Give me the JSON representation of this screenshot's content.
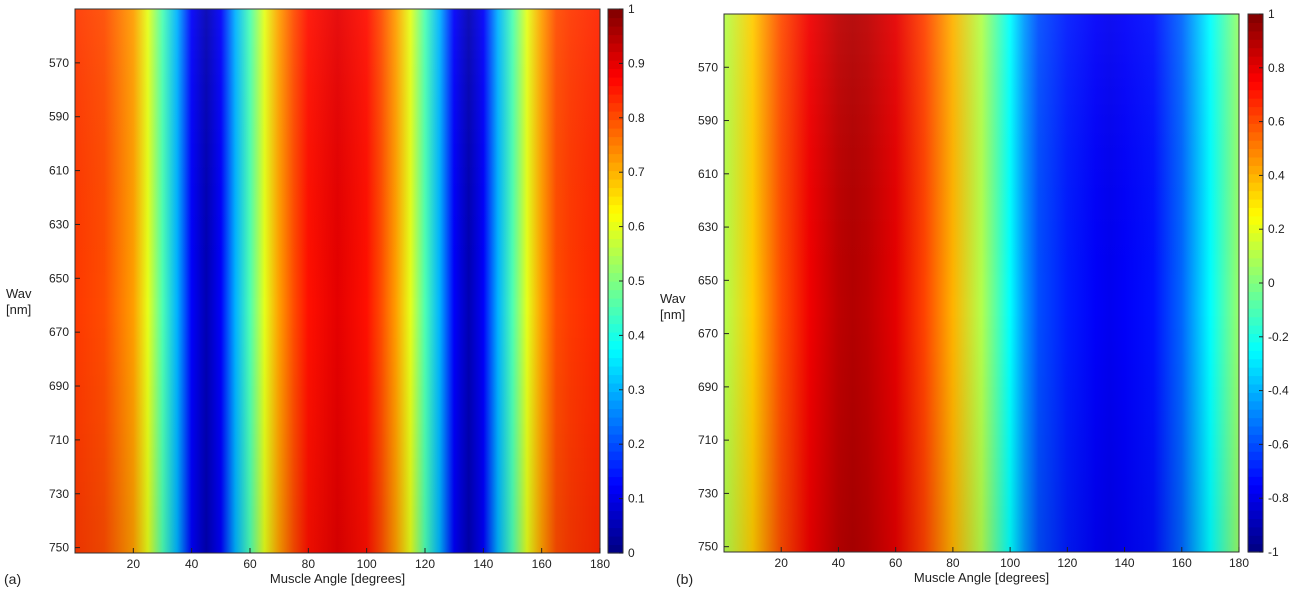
{
  "chart_data": [
    {
      "panel_label": "(a)",
      "type": "heatmap",
      "xlabel": "Muscle Angle [degrees]",
      "ylabel_lines": [
        "Wav",
        "[nm]"
      ],
      "xlim": [
        0,
        180
      ],
      "ylim": [
        550,
        752
      ],
      "x_ticks": [
        20,
        40,
        60,
        80,
        100,
        120,
        140,
        160,
        180
      ],
      "y_ticks": [
        570,
        590,
        610,
        630,
        650,
        670,
        690,
        710,
        730,
        750
      ],
      "colorbar": {
        "range": [
          0,
          1
        ],
        "ticks": [
          0,
          0.1,
          0.2,
          0.3,
          0.4,
          0.5,
          0.6,
          0.7,
          0.8,
          0.9,
          1
        ],
        "tick_labels": [
          "0",
          "0.1",
          "0.2",
          "0.3",
          "0.4",
          "0.5",
          "0.6",
          "0.7",
          "0.8",
          "0.9",
          "1"
        ]
      },
      "colormap": "jet",
      "profile": {
        "angle": [
          0,
          10,
          20,
          25,
          30,
          35,
          40,
          45,
          50,
          55,
          60,
          65,
          70,
          75,
          80,
          90,
          100,
          105,
          110,
          115,
          120,
          125,
          130,
          135,
          140,
          145,
          150,
          155,
          160,
          165,
          170,
          180
        ],
        "value": [
          0.82,
          0.8,
          0.72,
          0.6,
          0.45,
          0.3,
          0.12,
          0.05,
          0.12,
          0.3,
          0.45,
          0.6,
          0.72,
          0.8,
          0.86,
          0.9,
          0.86,
          0.8,
          0.72,
          0.6,
          0.45,
          0.3,
          0.12,
          0.05,
          0.12,
          0.3,
          0.45,
          0.6,
          0.72,
          0.8,
          0.82,
          0.84
        ]
      }
    },
    {
      "panel_label": "(b)",
      "type": "heatmap",
      "xlabel": "Muscle Angle [degrees]",
      "ylabel_lines": [
        "Wav",
        "[nm]"
      ],
      "xlim": [
        0,
        180
      ],
      "ylim": [
        550,
        752
      ],
      "x_ticks": [
        20,
        40,
        60,
        80,
        100,
        120,
        140,
        160,
        180
      ],
      "y_ticks": [
        570,
        590,
        610,
        630,
        650,
        670,
        690,
        710,
        730,
        750
      ],
      "colorbar": {
        "range": [
          -1,
          1
        ],
        "ticks": [
          -1,
          -0.8,
          -0.6,
          -0.4,
          -0.2,
          0,
          0.2,
          0.4,
          0.6,
          0.8,
          1
        ],
        "tick_labels": [
          "-1",
          "-0.8",
          "-0.6",
          "-0.4",
          "-0.2",
          "0",
          "0.2",
          "0.4",
          "0.6",
          "0.8",
          "1"
        ]
      },
      "colormap": "jet",
      "profile": {
        "angle": [
          0,
          10,
          20,
          30,
          40,
          45,
          50,
          60,
          70,
          80,
          90,
          100,
          105,
          110,
          120,
          130,
          135,
          140,
          150,
          160,
          170,
          180
        ],
        "value": [
          0.1,
          0.35,
          0.6,
          0.78,
          0.88,
          0.9,
          0.88,
          0.8,
          0.62,
          0.4,
          0.1,
          -0.25,
          -0.45,
          -0.6,
          -0.7,
          -0.76,
          -0.78,
          -0.76,
          -0.72,
          -0.55,
          -0.25,
          0.05
        ]
      }
    }
  ]
}
